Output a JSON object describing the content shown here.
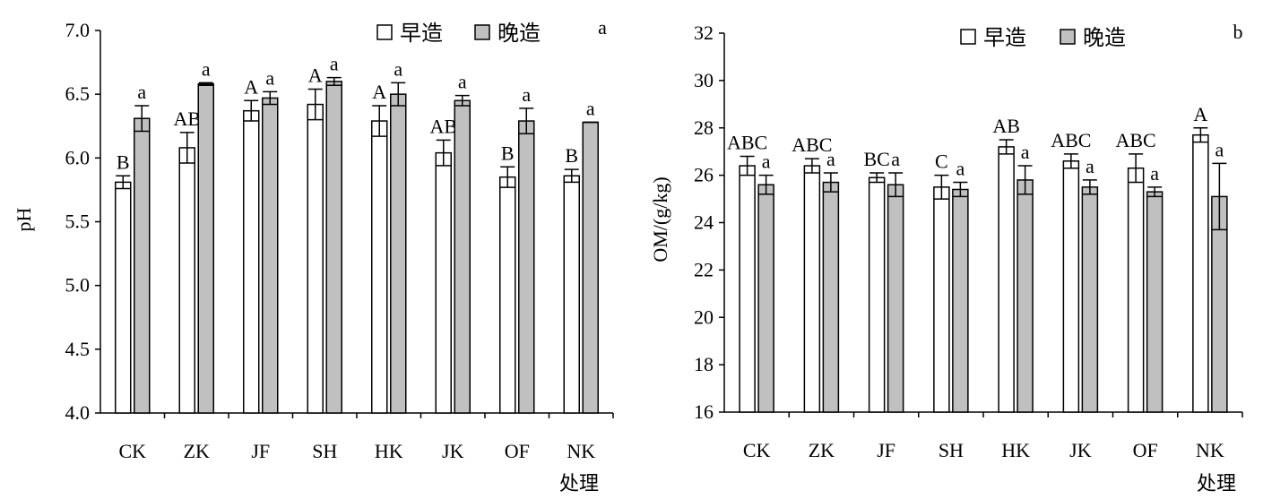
{
  "chart_data": [
    {
      "type": "bar",
      "panel_label": "a",
      "title": "",
      "xlabel": "处理",
      "ylabel": "pH",
      "ylim": [
        4.0,
        7.0
      ],
      "yticks": [
        4.0,
        4.5,
        5.0,
        5.5,
        6.0,
        6.5,
        7.0
      ],
      "ytick_labels": [
        "4.0",
        "4.5",
        "5.0",
        "5.5",
        "6.0",
        "6.5",
        "7.0"
      ],
      "legend_position": "top-center",
      "categories": [
        "CK",
        "ZK",
        "JF",
        "SH",
        "HK",
        "JK",
        "OF",
        "NK"
      ],
      "series": [
        {
          "name": "早造",
          "color": "#ffffff",
          "values": [
            5.81,
            6.08,
            6.37,
            6.42,
            6.29,
            6.04,
            5.85,
            5.86
          ],
          "errors": [
            0.05,
            0.12,
            0.08,
            0.12,
            0.12,
            0.1,
            0.08,
            0.05
          ],
          "letters": [
            "B",
            "AB",
            "A",
            "A",
            "A",
            "AB",
            "B",
            "B"
          ]
        },
        {
          "name": "晚造",
          "color": "#c0c0c0",
          "values": [
            6.31,
            6.58,
            6.47,
            6.6,
            6.5,
            6.45,
            6.29,
            6.28
          ],
          "errors": [
            0.1,
            0.01,
            0.05,
            0.03,
            0.09,
            0.04,
            0.1,
            0.0
          ],
          "letters": [
            "a",
            "a",
            "a",
            "a",
            "a",
            "a",
            "a",
            "a"
          ]
        }
      ]
    },
    {
      "type": "bar",
      "panel_label": "b",
      "title": "",
      "xlabel": "处理",
      "ylabel": "OM/(g/kg)",
      "ylim": [
        16,
        32
      ],
      "yticks": [
        16,
        18,
        20,
        22,
        24,
        26,
        28,
        30,
        32
      ],
      "ytick_labels": [
        "16",
        "18",
        "20",
        "22",
        "24",
        "26",
        "28",
        "30",
        "32"
      ],
      "legend_position": "top-center",
      "categories": [
        "CK",
        "ZK",
        "JF",
        "SH",
        "HK",
        "JK",
        "OF",
        "NK"
      ],
      "series": [
        {
          "name": "早造",
          "color": "#ffffff",
          "values": [
            26.4,
            26.4,
            25.9,
            25.5,
            27.2,
            26.6,
            26.3,
            27.7
          ],
          "errors": [
            0.4,
            0.3,
            0.2,
            0.5,
            0.3,
            0.3,
            0.6,
            0.3
          ],
          "letters": [
            "ABC",
            "ABC",
            "BC",
            "C",
            "AB",
            "ABC",
            "ABC",
            "A"
          ]
        },
        {
          "name": "晚造",
          "color": "#c0c0c0",
          "values": [
            25.6,
            25.7,
            25.6,
            25.4,
            25.8,
            25.5,
            25.3,
            25.1
          ],
          "errors": [
            0.4,
            0.4,
            0.5,
            0.3,
            0.6,
            0.3,
            0.2,
            1.4
          ],
          "letters": [
            "a",
            "a",
            "a",
            "a",
            "a",
            "a",
            "a",
            "a"
          ]
        }
      ]
    }
  ]
}
